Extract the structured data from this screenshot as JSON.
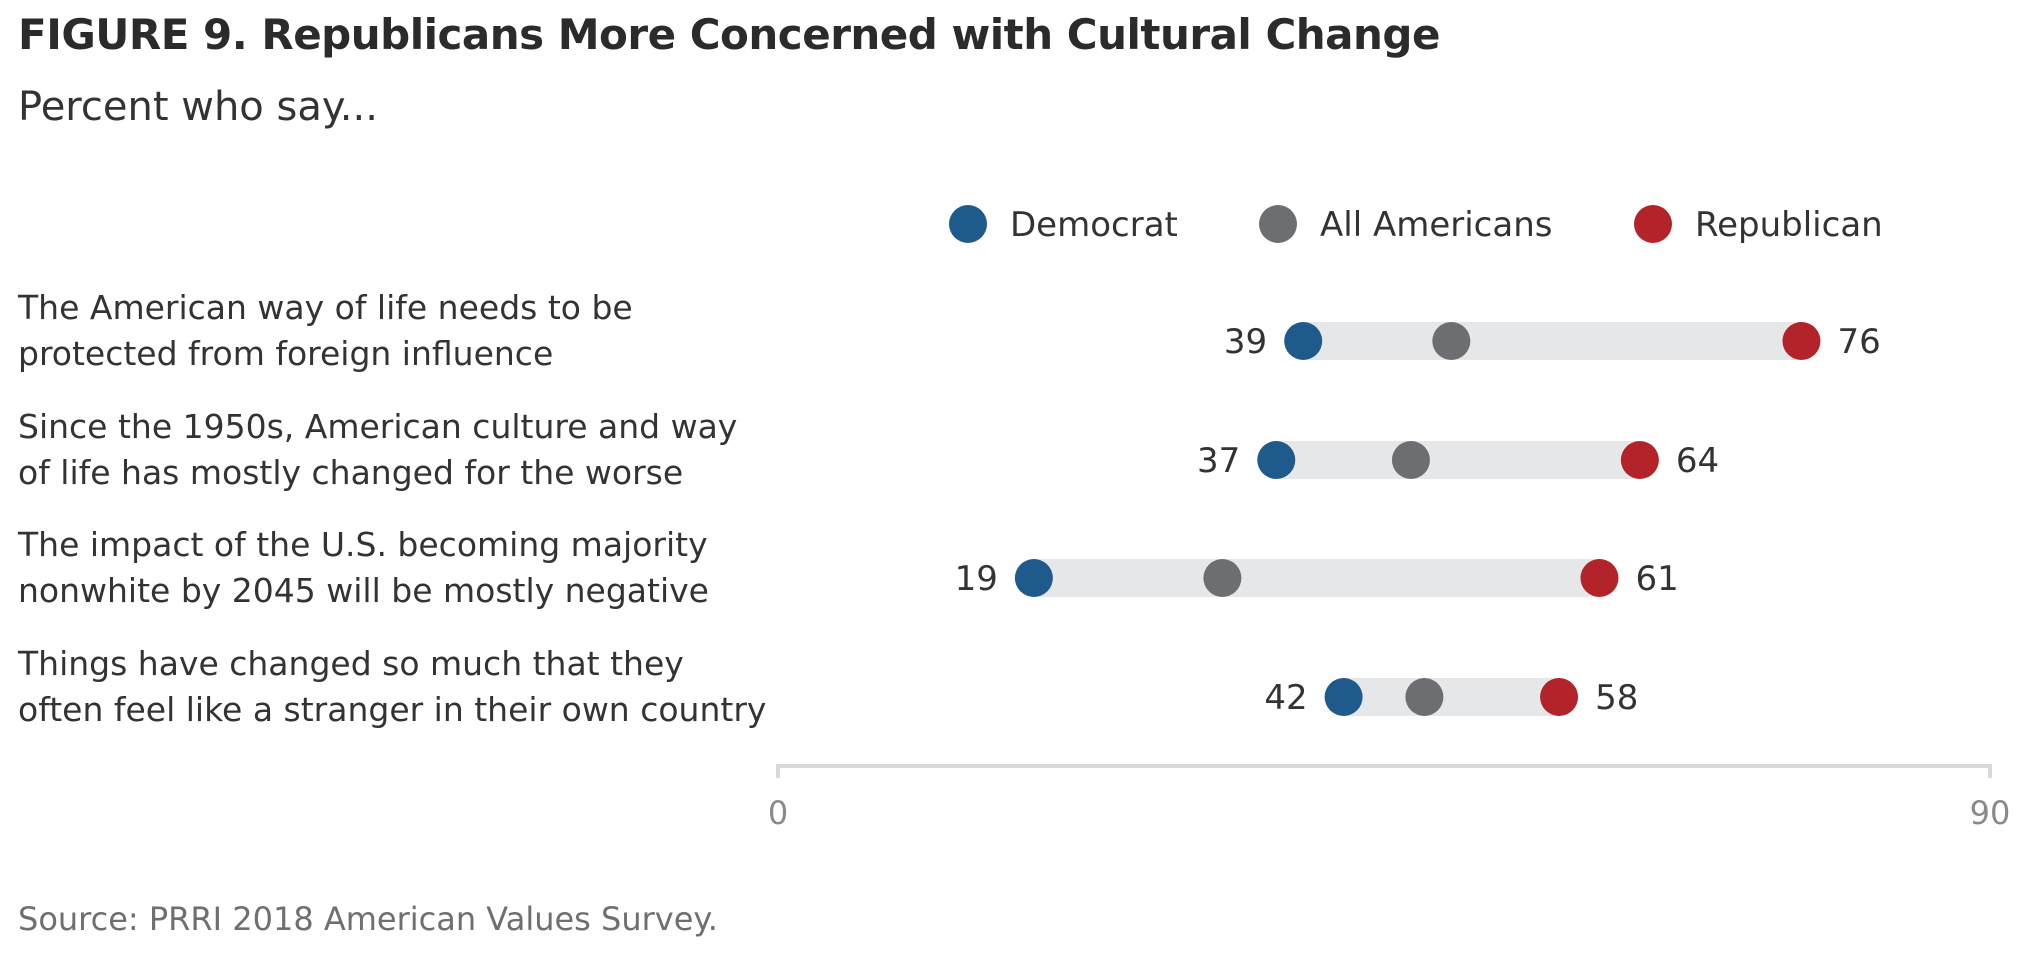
{
  "title": "FIGURE 9.  Republicans More Concerned with Cultural Change",
  "subtitle": "Percent who say...",
  "source": "Source: PRRI 2018 American Values Survey.",
  "colors": {
    "democrat": "#1f5a8c",
    "all_americans": "#6d6e71",
    "republican": "#b3232a",
    "range_bar": "#e6e7e8",
    "axis": "#d9d9d9"
  },
  "chart_data": {
    "type": "dot-range",
    "title": "FIGURE 9.  Republicans More Concerned with Cultural Change",
    "subtitle": "Percent who say...",
    "xlim": [
      0,
      90
    ],
    "x_ticks": [
      "0",
      "90"
    ],
    "legend": {
      "position": "top-right",
      "entries": [
        "Democrat",
        "All Americans",
        "Republican"
      ]
    },
    "categories": [
      [
        "The American way of life needs to be",
        "protected from foreign influence"
      ],
      [
        "Since the 1950s, American culture and way",
        "of life has mostly changed for the worse"
      ],
      [
        "The impact of the U.S. becoming majority",
        "nonwhite by 2045 will be mostly negative"
      ],
      [
        "Things have changed so much that they",
        "often feel like a stranger in their own country"
      ]
    ],
    "series": [
      {
        "name": "Democrat",
        "values": [
          39,
          37,
          19,
          42
        ],
        "labeled": true
      },
      {
        "name": "All Americans",
        "values": [
          50,
          47,
          33,
          48
        ],
        "labeled": false
      },
      {
        "name": "Republican",
        "values": [
          76,
          64,
          61,
          58
        ],
        "labeled": true
      }
    ]
  }
}
